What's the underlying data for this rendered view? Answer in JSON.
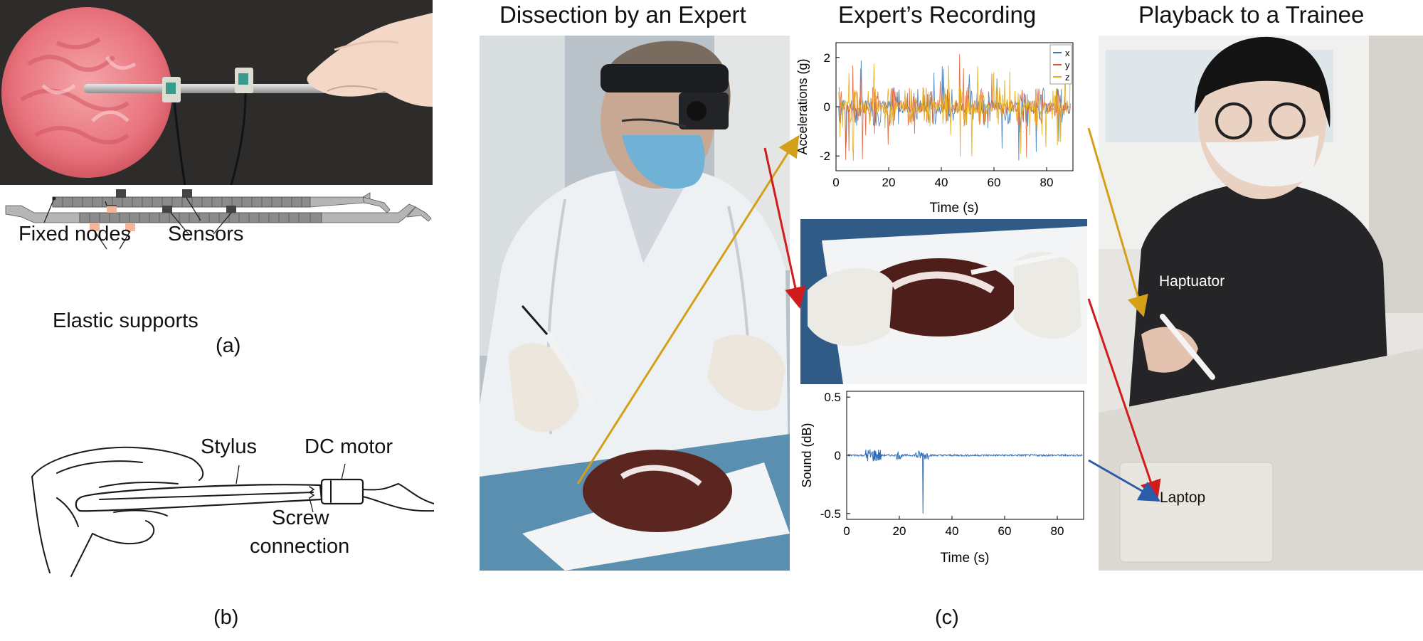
{
  "panel_a": {
    "labels": {
      "fixed_nodes": "Fixed nodes",
      "sensors": "Sensors",
      "elastic_supports": "Elastic supports"
    },
    "caption": "(a)"
  },
  "panel_b": {
    "labels": {
      "stylus": "Stylus",
      "dc_motor": "DC motor",
      "screw_connection_line1": "Screw",
      "screw_connection_line2": "connection"
    },
    "caption": "(b)"
  },
  "panel_c": {
    "titles": {
      "dissection": "Dissection by an Expert",
      "recording": "Expert’s Recording",
      "playback": "Playback to a Trainee"
    },
    "labels": {
      "haptuator": "Haptuator",
      "laptop": "Laptop"
    },
    "caption": "(c)",
    "arrow_colors": {
      "acceleration": "#d4a017",
      "video": "#d01c1c",
      "sound": "#2a5caa"
    }
  },
  "chart_data": [
    {
      "type": "line",
      "xlabel": "Time (s)",
      "ylabel": "Accelerations (g)",
      "xlim": [
        0,
        90
      ],
      "ylim": [
        -2.6,
        2.6
      ],
      "xticks": [
        0,
        20,
        40,
        60,
        80
      ],
      "yticks": [
        -2,
        0,
        2
      ],
      "legend_position": "top-right",
      "series": [
        {
          "name": "x",
          "color": "#3a78b5"
        },
        {
          "name": "y",
          "color": "#e05a2b"
        },
        {
          "name": "z",
          "color": "#e8b020"
        }
      ]
    },
    {
      "type": "line",
      "xlabel": "Time (s)",
      "ylabel": "Sound (dB)",
      "xlim": [
        0,
        90
      ],
      "ylim": [
        -0.55,
        0.55
      ],
      "xticks": [
        0,
        20,
        40,
        60,
        80
      ],
      "yticks": [
        -0.5,
        0,
        0.5
      ],
      "ytick_labels": [
        "-0.5",
        "0",
        "0.5"
      ],
      "series": [
        {
          "name": "",
          "color": "#2f6db5"
        }
      ]
    }
  ]
}
